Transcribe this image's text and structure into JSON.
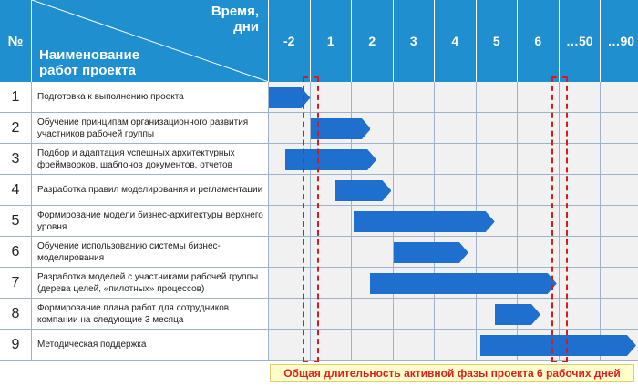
{
  "header": {
    "num_label": "№",
    "time_label": "Время,",
    "time_unit": "дни",
    "name_line1": "Наименование",
    "name_line2": "работ проекта"
  },
  "chart_data": {
    "type": "gantt",
    "days": [
      "-2",
      "1",
      "2",
      "3",
      "4",
      "5",
      "6",
      "…50",
      "…90"
    ],
    "tasks": [
      {
        "num": "1",
        "name": "Подготовка к выполнению проекта",
        "start": 0.0,
        "end": 1.0
      },
      {
        "num": "2",
        "name": "Обучение принципам организационного развития участников рабочей группы",
        "start": 1.0,
        "end": 2.45
      },
      {
        "num": "3",
        "name": "Подбор и адаптация успешных архитектурных фреймворков, шаблонов документов, отчетов",
        "start": 0.4,
        "end": 2.6
      },
      {
        "num": "4",
        "name": "Разработка правил моделирования и регламентации",
        "start": 1.6,
        "end": 2.95
      },
      {
        "num": "5",
        "name": "Формирование модели бизнес-архитектуры верхнего уровня",
        "start": 2.05,
        "end": 5.45
      },
      {
        "num": "6",
        "name": "Обучение использованию системы бизнес-моделирования",
        "start": 3.0,
        "end": 4.8
      },
      {
        "num": "7",
        "name": "Разработка моделей с участниками рабочей группы (дерева целей, «пилотных» процессов)",
        "start": 2.45,
        "end": 6.95
      },
      {
        "num": "8",
        "name": "Формирование плана работ для сотрудников компании на следующие 3 месяца",
        "start": 5.45,
        "end": 6.55
      },
      {
        "num": "9",
        "name": "Методическая поддержка",
        "start": 5.1,
        "end": 9.0
      }
    ],
    "markers": [
      {
        "at_day_boundary": 1
      },
      {
        "at_day_boundary": 7
      }
    ],
    "bar_color": "#1f6fcf",
    "header_color": "#1f8fd0",
    "marker_color": "#d21e1e"
  },
  "footnote": "Общая длительность активной фазы проекта 6 рабочих дней"
}
